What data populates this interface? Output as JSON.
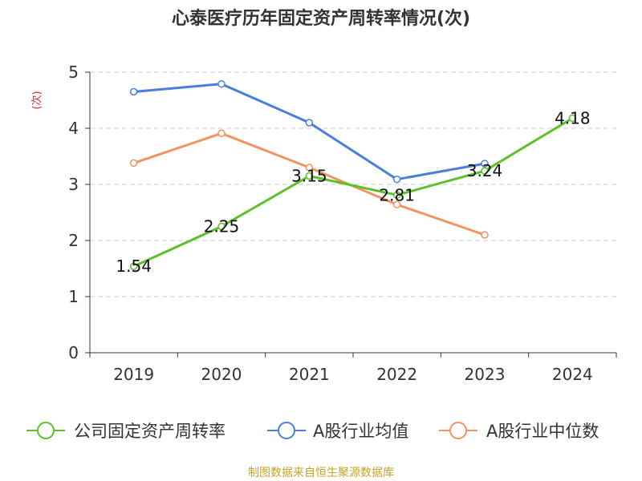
{
  "chart_data": {
    "type": "line",
    "title": "心泰医疗历年固定资产周转率情况(次)",
    "ylabel": "(次)",
    "xlabel": "",
    "categories": [
      "2019",
      "2020",
      "2021",
      "2022",
      "2023",
      "2024"
    ],
    "ylim": [
      0,
      5
    ],
    "yticks": [
      "0",
      "1",
      "2",
      "3",
      "4",
      "5"
    ],
    "grid": true,
    "legend_position": "bottom",
    "series": [
      {
        "name": "公司固定资产周转率",
        "color": "#5cc02a",
        "values": [
          1.54,
          2.25,
          3.15,
          2.81,
          3.24,
          4.18
        ],
        "labels": [
          "1.54",
          "2.25",
          "3.15",
          "2.81",
          "3.24",
          "4.18"
        ]
      },
      {
        "name": "A股行业均值",
        "color": "#4a7fd9",
        "values": [
          4.65,
          4.79,
          4.1,
          3.09,
          3.37,
          null
        ]
      },
      {
        "name": "A股行业中位数",
        "color": "#f59262",
        "values": [
          3.38,
          3.91,
          3.3,
          2.64,
          2.1,
          null
        ]
      }
    ]
  },
  "source": "制图数据来自恒生聚源数据库",
  "colors": {
    "axis": "#333333",
    "grid": "#cccccc",
    "ylabel": "#d9251c",
    "source": "#c9a227"
  }
}
